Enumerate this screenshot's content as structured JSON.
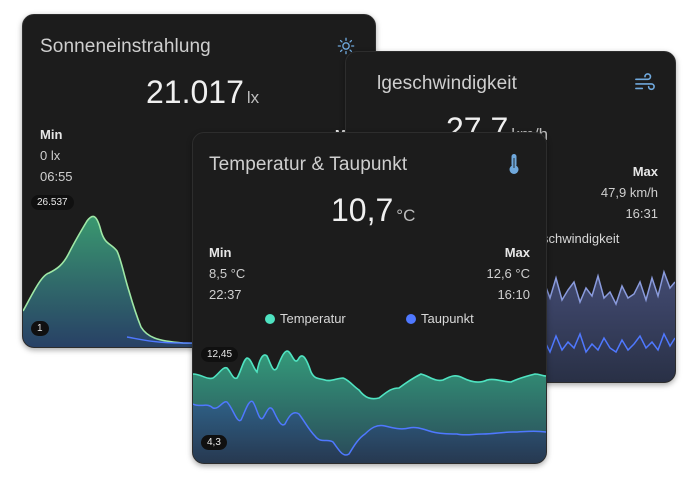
{
  "sun": {
    "title": "Sonneneinstrahlung",
    "value": "21.017",
    "unit": "lx",
    "min_label": "Min",
    "min_value": "0 lx",
    "min_time": "06:55",
    "max_partial": "M",
    "chip_max": "26.537",
    "chip_min": "1",
    "icon": "sun-icon"
  },
  "wind": {
    "title_partial": "lgeschwindigkeit",
    "value_partial": "27,7",
    "unit_partial": "km/h",
    "max_label": "Max",
    "max_value": "47,9 km/h",
    "max_time": "16:31",
    "legend_partial": "schwindigkeit",
    "icon": "wind-icon"
  },
  "temp": {
    "title": "Temperatur & Taupunkt",
    "value": "10,7",
    "unit": "°C",
    "min_label": "Min",
    "min_value": "8,5 °C",
    "min_time": "22:37",
    "max_label": "Max",
    "max_value": "12,6 °C",
    "max_time": "16:10",
    "legend": [
      {
        "name": "Temperatur",
        "color": "#4fe3c1"
      },
      {
        "name": "Taupunkt",
        "color": "#4f78ff"
      }
    ],
    "chip_max": "12,45",
    "chip_min": "4,3",
    "icon": "thermometer-icon"
  },
  "colors": {
    "card_bg": "#1c1c1c",
    "temp_line": "#4fe3c1",
    "dew_line": "#4f78ff",
    "wind_line": "#8a9bdd",
    "icon_blue": "#6fa8dc"
  }
}
